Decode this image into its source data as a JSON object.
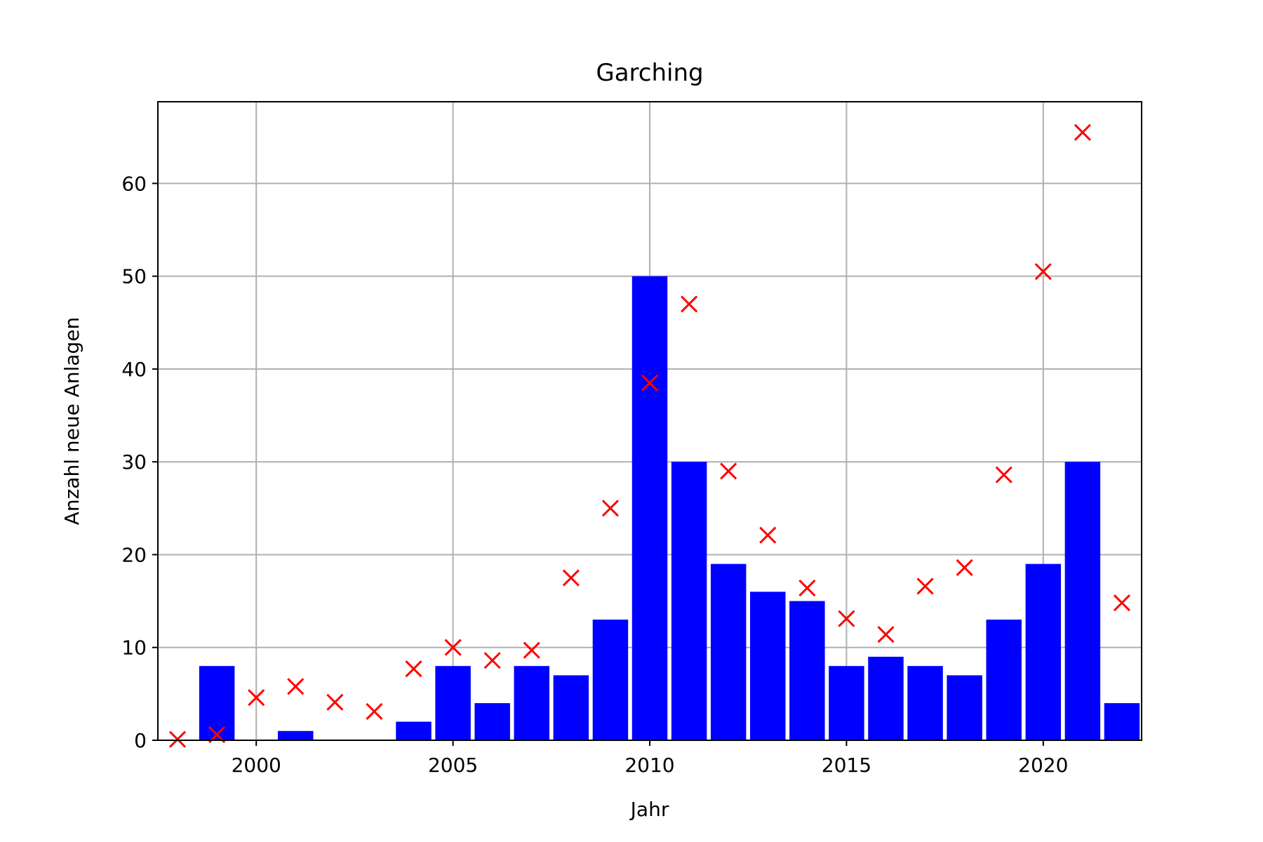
{
  "chart_data": {
    "type": "bar",
    "title": "Garching",
    "xlabel": "Jahr",
    "ylabel": "Anzahl neue Anlagen",
    "xlim": [
      1997.5,
      2022.5
    ],
    "ylim": [
      0,
      68.8
    ],
    "xticks": [
      2000,
      2005,
      2010,
      2015,
      2020
    ],
    "yticks": [
      0,
      10,
      20,
      30,
      40,
      50,
      60
    ],
    "grid": true,
    "bar_color": "#0000ff",
    "marker_color": "#ff0000",
    "series": [
      {
        "type": "bar",
        "x": [
          1998,
          1999,
          2000,
          2001,
          2002,
          2003,
          2004,
          2005,
          2006,
          2007,
          2008,
          2009,
          2010,
          2011,
          2012,
          2013,
          2014,
          2015,
          2016,
          2017,
          2018,
          2019,
          2020,
          2021,
          2022
        ],
        "values": [
          0,
          8,
          0,
          1,
          0,
          0,
          2,
          8,
          4,
          8,
          7,
          13,
          50,
          30,
          19,
          16,
          15,
          8,
          9,
          8,
          7,
          13,
          19,
          30,
          4
        ]
      },
      {
        "type": "scatter",
        "marker": "x",
        "x": [
          1998,
          1999,
          2000,
          2001,
          2002,
          2003,
          2004,
          2005,
          2006,
          2007,
          2008,
          2009,
          2010,
          2011,
          2012,
          2013,
          2014,
          2015,
          2016,
          2017,
          2018,
          2019,
          2020,
          2021,
          2022
        ],
        "values": [
          0.1,
          0.6,
          4.6,
          5.8,
          4.1,
          3.1,
          7.7,
          10.0,
          8.6,
          9.7,
          17.5,
          25.0,
          38.5,
          47.0,
          29.0,
          22.1,
          16.4,
          13.1,
          11.4,
          16.6,
          18.6,
          28.6,
          50.5,
          65.5,
          14.8
        ]
      }
    ]
  }
}
